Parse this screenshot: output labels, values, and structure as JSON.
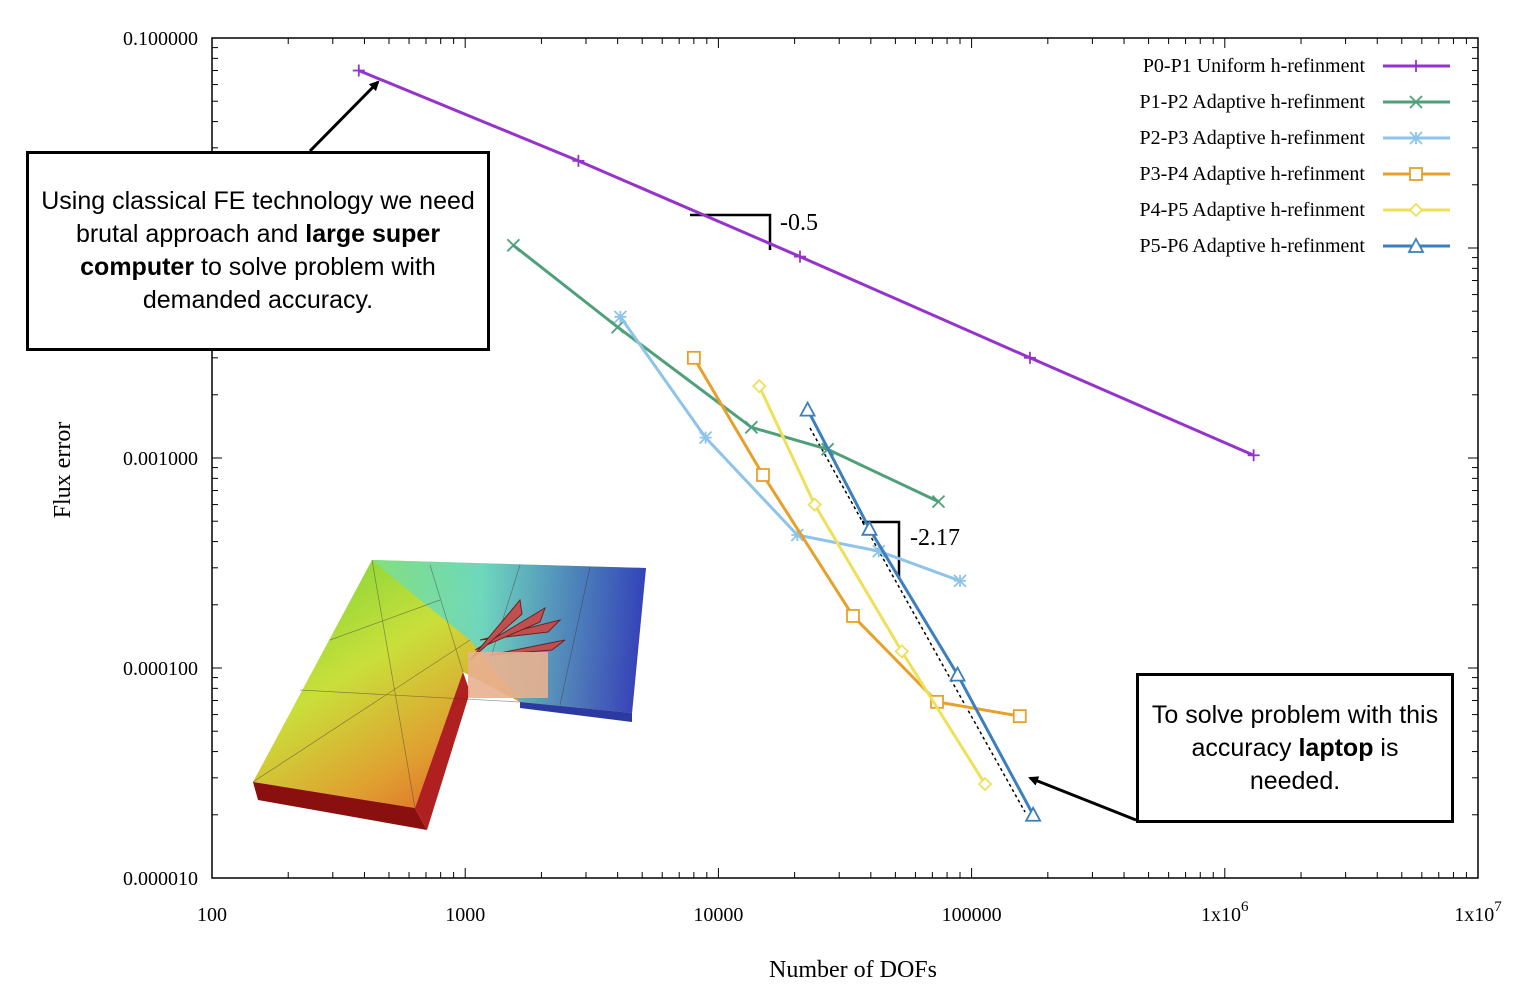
{
  "chart_data": {
    "type": "line",
    "xlabel": "Number of DOFs",
    "ylabel": "Flux error",
    "xscale": "log",
    "yscale": "log",
    "xlim": [
      100,
      10000000
    ],
    "ylim": [
      1e-05,
      0.1
    ],
    "x_tick_labels": [
      "100",
      "1000",
      "10000",
      "100000",
      "1x10",
      "1x10"
    ],
    "x_tick_exponents": [
      "",
      "",
      "",
      "",
      "6",
      "7"
    ],
    "y_tick_labels": [
      "0.100000",
      "0.001000",
      "0.000100",
      "0.000010"
    ],
    "y_tick_values": [
      0.1,
      0.001,
      0.0001,
      1e-05
    ],
    "legend_position": "top-right",
    "series": [
      {
        "name": "P0-P1 Uniform h-refinment",
        "color": "#9633cc",
        "marker": "plus",
        "x": [
          380,
          2800,
          21000,
          170000,
          1300000
        ],
        "y": [
          0.07,
          0.026,
          0.0091,
          0.003,
          0.00103
        ]
      },
      {
        "name": "P1-P2 Adaptive h-refinment",
        "color": "#4fa07a",
        "marker": "cross",
        "x": [
          1550,
          4000,
          13500,
          27000,
          74000
        ],
        "y": [
          0.0103,
          0.0042,
          0.0014,
          0.0011,
          0.00062
        ]
      },
      {
        "name": "P2-P3 Adaptive h-refinment",
        "color": "#8ec4ea",
        "marker": "star",
        "x": [
          4100,
          8900,
          20500,
          43000,
          90000
        ],
        "y": [
          0.0047,
          0.00125,
          0.00043,
          0.00036,
          0.00026
        ]
      },
      {
        "name": "P3-P4 Adaptive h-refinment",
        "color": "#e6a12a",
        "marker": "square",
        "x": [
          8000,
          15000,
          34000,
          73000,
          155000
        ],
        "y": [
          0.003,
          0.00083,
          0.000177,
          6.9e-05,
          5.9e-05
        ]
      },
      {
        "name": "P4-P5 Adaptive h-refinment",
        "color": "#eee058",
        "marker": "diamond",
        "x": [
          14500,
          24000,
          53000,
          113000
        ],
        "y": [
          0.0022,
          0.0006,
          0.00012,
          2.8e-05
        ]
      },
      {
        "name": "P5-P6 Adaptive h-refinment",
        "color": "#3b7fbc",
        "marker": "triangle",
        "x": [
          22500,
          39500,
          88000,
          175000
        ],
        "y": [
          0.0017,
          0.00046,
          9.3e-05,
          2e-05
        ]
      }
    ],
    "annotations": {
      "slope_upper": "-0.5",
      "slope_lower": "-2.17"
    }
  },
  "callouts": {
    "left": {
      "part1": "Using classical FE technology we need brutal approach and ",
      "bold": "large super computer",
      "part2": " to solve problem with demanded accuracy."
    },
    "right": {
      "part1": "To solve problem with this accuracy ",
      "bold": "laptop",
      "part2": " is needed."
    }
  }
}
